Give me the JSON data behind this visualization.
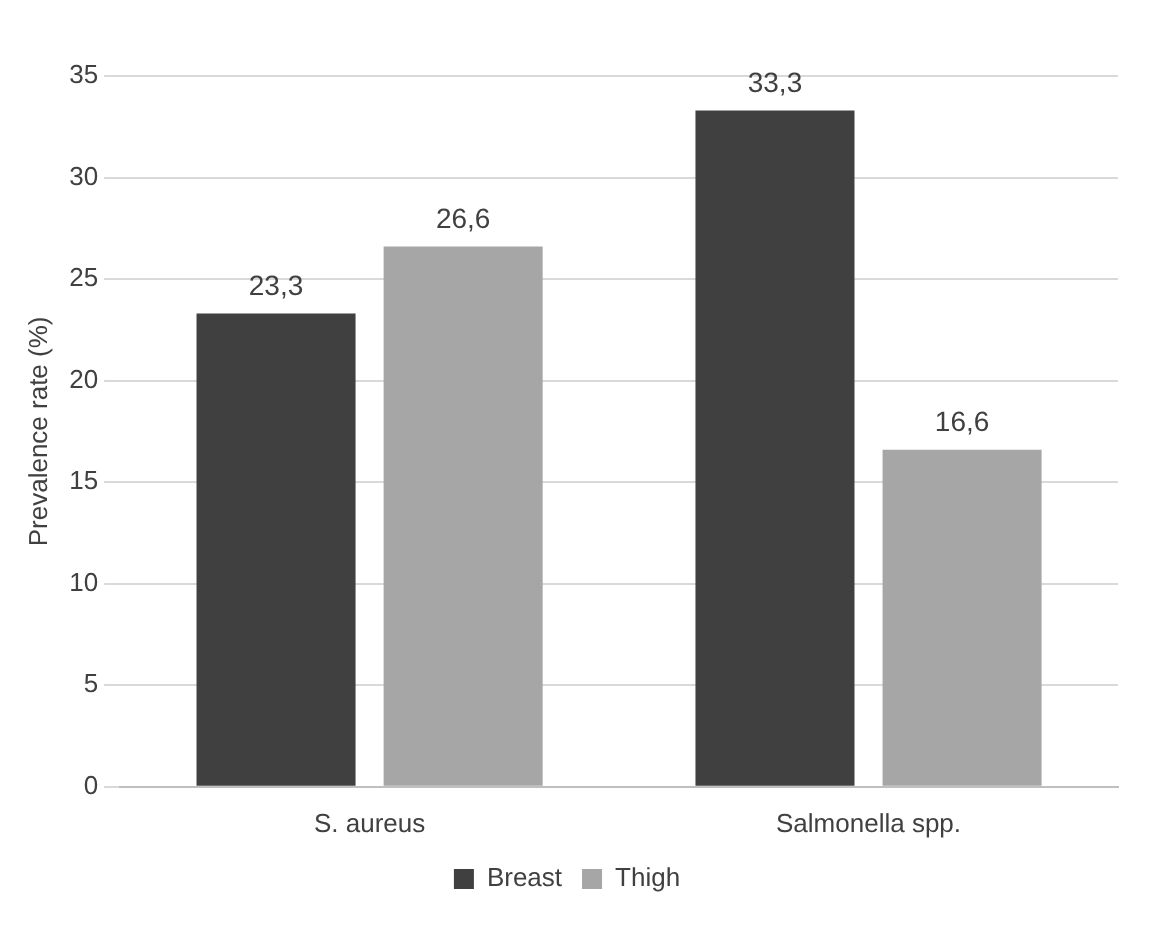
{
  "chart_data": {
    "type": "bar",
    "ylabel": "Prevalence rate (%)",
    "categories": [
      "S. aureus",
      "Salmonella spp."
    ],
    "series": [
      {
        "name": "Breast",
        "color": "#404040",
        "values": [
          23.3,
          33.3
        ],
        "value_labels": [
          "23,3",
          "33,3"
        ]
      },
      {
        "name": "Thigh",
        "color": "#a6a6a6",
        "values": [
          26.6,
          16.6
        ],
        "value_labels": [
          "26,6",
          "16,6"
        ]
      }
    ],
    "ylim": [
      0,
      35
    ],
    "yticks": [
      0,
      5,
      10,
      15,
      20,
      25,
      30,
      35
    ],
    "grid": "y",
    "legend": "bottom"
  }
}
